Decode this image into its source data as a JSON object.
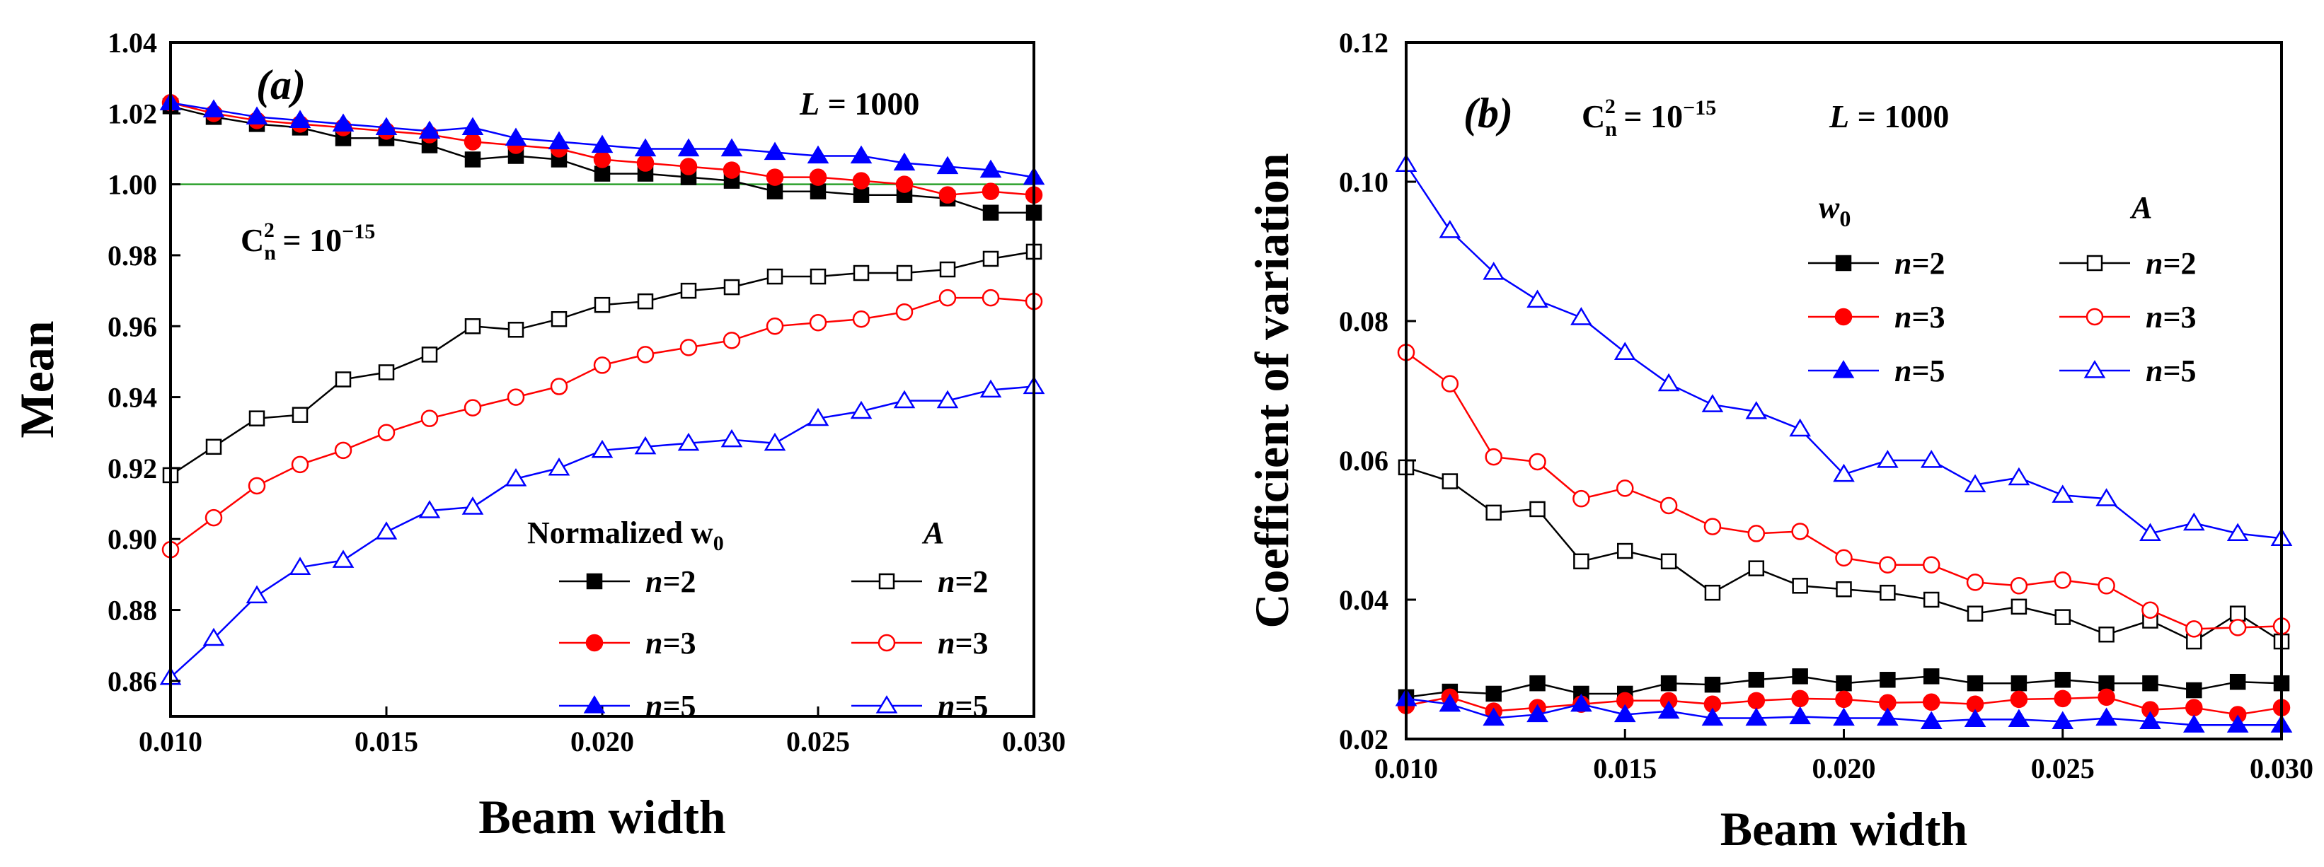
{
  "chart_data": [
    {
      "type": "line",
      "panel_label": "(a)",
      "xlabel": "Beam width",
      "ylabel": "Mean",
      "xlim": [
        0.01,
        0.03
      ],
      "ylim": [
        0.85,
        1.04
      ],
      "xticks": [
        "0.010",
        "0.015",
        "0.020",
        "0.025",
        "0.030"
      ],
      "yticks": [
        "0.86",
        "0.88",
        "0.90",
        "0.92",
        "0.94",
        "0.96",
        "0.98",
        "1.00",
        "1.02",
        "1.04"
      ],
      "annotations": {
        "L_label": "L = 1000",
        "cn_label": "C",
        "cn_sub": "n",
        "cn_sup": "2",
        "cn_value": " = 10",
        "cn_exp": "−15"
      },
      "legend": {
        "title_w0": "Normalized w",
        "title_w0_sub": "0",
        "title_A": "A",
        "entries": [
          "n=2",
          "n=3",
          "n=5"
        ]
      },
      "reference_line": {
        "y": 1.0,
        "color": "#2ca02c"
      },
      "x": [
        0.01,
        0.011,
        0.012,
        0.013,
        0.014,
        0.015,
        0.016,
        0.017,
        0.018,
        0.019,
        0.02,
        0.021,
        0.022,
        0.023,
        0.024,
        0.025,
        0.026,
        0.027,
        0.028,
        0.029,
        0.03
      ],
      "series": [
        {
          "name": "w0 n=2",
          "group": "w0",
          "color": "#000000",
          "marker": "square",
          "filled": true,
          "values": [
            1.022,
            1.019,
            1.017,
            1.016,
            1.013,
            1.013,
            1.011,
            1.007,
            1.008,
            1.007,
            1.003,
            1.003,
            1.002,
            1.001,
            0.998,
            0.998,
            0.997,
            0.997,
            0.996,
            0.992,
            0.992
          ]
        },
        {
          "name": "w0 n=3",
          "group": "w0",
          "color": "#ff0000",
          "marker": "circle",
          "filled": true,
          "values": [
            1.023,
            1.02,
            1.018,
            1.017,
            1.016,
            1.015,
            1.014,
            1.012,
            1.011,
            1.01,
            1.007,
            1.006,
            1.005,
            1.004,
            1.002,
            1.002,
            1.001,
            1.0,
            0.997,
            0.998,
            0.997
          ]
        },
        {
          "name": "w0 n=5",
          "group": "w0",
          "color": "#0000ff",
          "marker": "triangle",
          "filled": true,
          "values": [
            1.023,
            1.021,
            1.019,
            1.018,
            1.017,
            1.016,
            1.015,
            1.016,
            1.013,
            1.012,
            1.011,
            1.01,
            1.01,
            1.01,
            1.009,
            1.008,
            1.008,
            1.006,
            1.005,
            1.004,
            1.002
          ]
        },
        {
          "name": "A n=2",
          "group": "A",
          "color": "#000000",
          "marker": "square",
          "filled": false,
          "values": [
            0.918,
            0.926,
            0.934,
            0.935,
            0.945,
            0.947,
            0.952,
            0.96,
            0.959,
            0.962,
            0.966,
            0.967,
            0.97,
            0.971,
            0.974,
            0.974,
            0.975,
            0.975,
            0.976,
            0.979,
            0.981
          ]
        },
        {
          "name": "A n=3",
          "group": "A",
          "color": "#ff0000",
          "marker": "circle",
          "filled": false,
          "values": [
            0.897,
            0.906,
            0.915,
            0.921,
            0.925,
            0.93,
            0.934,
            0.937,
            0.94,
            0.943,
            0.949,
            0.952,
            0.954,
            0.956,
            0.96,
            0.961,
            0.962,
            0.964,
            0.968,
            0.968,
            0.967
          ]
        },
        {
          "name": "A n=5",
          "group": "A",
          "color": "#0000ff",
          "marker": "triangle",
          "filled": false,
          "values": [
            0.861,
            0.872,
            0.884,
            0.892,
            0.894,
            0.902,
            0.908,
            0.909,
            0.917,
            0.92,
            0.925,
            0.926,
            0.927,
            0.928,
            0.927,
            0.934,
            0.936,
            0.939,
            0.939,
            0.942,
            0.943
          ]
        }
      ]
    },
    {
      "type": "line",
      "panel_label": "(b)",
      "xlabel": "Beam width",
      "ylabel": "Coefficient of variation",
      "xlim": [
        0.01,
        0.03
      ],
      "ylim": [
        0.02,
        0.12
      ],
      "xticks": [
        "0.010",
        "0.015",
        "0.020",
        "0.025",
        "0.030"
      ],
      "yticks": [
        "0.02",
        "0.04",
        "0.06",
        "0.08",
        "0.10",
        "0.12"
      ],
      "annotations": {
        "L_label": "L = 1000",
        "cn_label": "C",
        "cn_sub": "n",
        "cn_sup": "2",
        "cn_value": " = 10",
        "cn_exp": "−15"
      },
      "legend": {
        "title_w0": "w",
        "title_w0_sub": "0",
        "title_A": "A",
        "entries": [
          "n=2",
          "n=3",
          "n=5"
        ]
      },
      "x": [
        0.01,
        0.011,
        0.012,
        0.013,
        0.014,
        0.015,
        0.016,
        0.017,
        0.018,
        0.019,
        0.02,
        0.021,
        0.022,
        0.023,
        0.024,
        0.025,
        0.026,
        0.027,
        0.028,
        0.029,
        0.03
      ],
      "series": [
        {
          "name": "w0 n=2",
          "group": "w0",
          "color": "#000000",
          "marker": "square",
          "filled": true,
          "values": [
            0.026,
            0.0268,
            0.0265,
            0.028,
            0.0265,
            0.0265,
            0.028,
            0.0278,
            0.0285,
            0.029,
            0.028,
            0.0285,
            0.029,
            0.028,
            0.028,
            0.0285,
            0.028,
            0.028,
            0.027,
            0.0282,
            0.028
          ]
        },
        {
          "name": "w0 n=3",
          "group": "w0",
          "color": "#ff0000",
          "marker": "circle",
          "filled": true,
          "values": [
            0.0248,
            0.026,
            0.024,
            0.0245,
            0.025,
            0.0255,
            0.0255,
            0.025,
            0.0255,
            0.0258,
            0.0257,
            0.0252,
            0.0253,
            0.025,
            0.0257,
            0.0258,
            0.026,
            0.0242,
            0.0245,
            0.0235,
            0.0245
          ]
        },
        {
          "name": "w0 n=5",
          "group": "w0",
          "color": "#0000ff",
          "marker": "triangle",
          "filled": true,
          "values": [
            0.0258,
            0.025,
            0.023,
            0.0235,
            0.025,
            0.0235,
            0.024,
            0.023,
            0.023,
            0.0232,
            0.023,
            0.023,
            0.0225,
            0.0228,
            0.0228,
            0.0225,
            0.023,
            0.0225,
            0.022,
            0.022,
            0.022
          ]
        },
        {
          "name": "A n=2",
          "group": "A",
          "color": "#000000",
          "marker": "square",
          "filled": false,
          "values": [
            0.059,
            0.057,
            0.0525,
            0.053,
            0.0455,
            0.047,
            0.0455,
            0.041,
            0.0445,
            0.042,
            0.0415,
            0.041,
            0.04,
            0.038,
            0.039,
            0.0375,
            0.035,
            0.037,
            0.034,
            0.038,
            0.034
          ]
        },
        {
          "name": "A n=3",
          "group": "A",
          "color": "#ff0000",
          "marker": "circle",
          "filled": false,
          "values": [
            0.0755,
            0.071,
            0.0605,
            0.0598,
            0.0545,
            0.056,
            0.0535,
            0.0505,
            0.0495,
            0.0498,
            0.046,
            0.045,
            0.045,
            0.0425,
            0.042,
            0.0428,
            0.042,
            0.0385,
            0.0358,
            0.036,
            0.0362
          ]
        },
        {
          "name": "A n=5",
          "group": "A",
          "color": "#0000ff",
          "marker": "triangle",
          "filled": false,
          "values": [
            0.1025,
            0.093,
            0.087,
            0.083,
            0.0805,
            0.0755,
            0.071,
            0.068,
            0.067,
            0.0645,
            0.058,
            0.06,
            0.06,
            0.0565,
            0.0575,
            0.055,
            0.0545,
            0.0495,
            0.051,
            0.0495,
            0.0488
          ]
        }
      ]
    }
  ]
}
